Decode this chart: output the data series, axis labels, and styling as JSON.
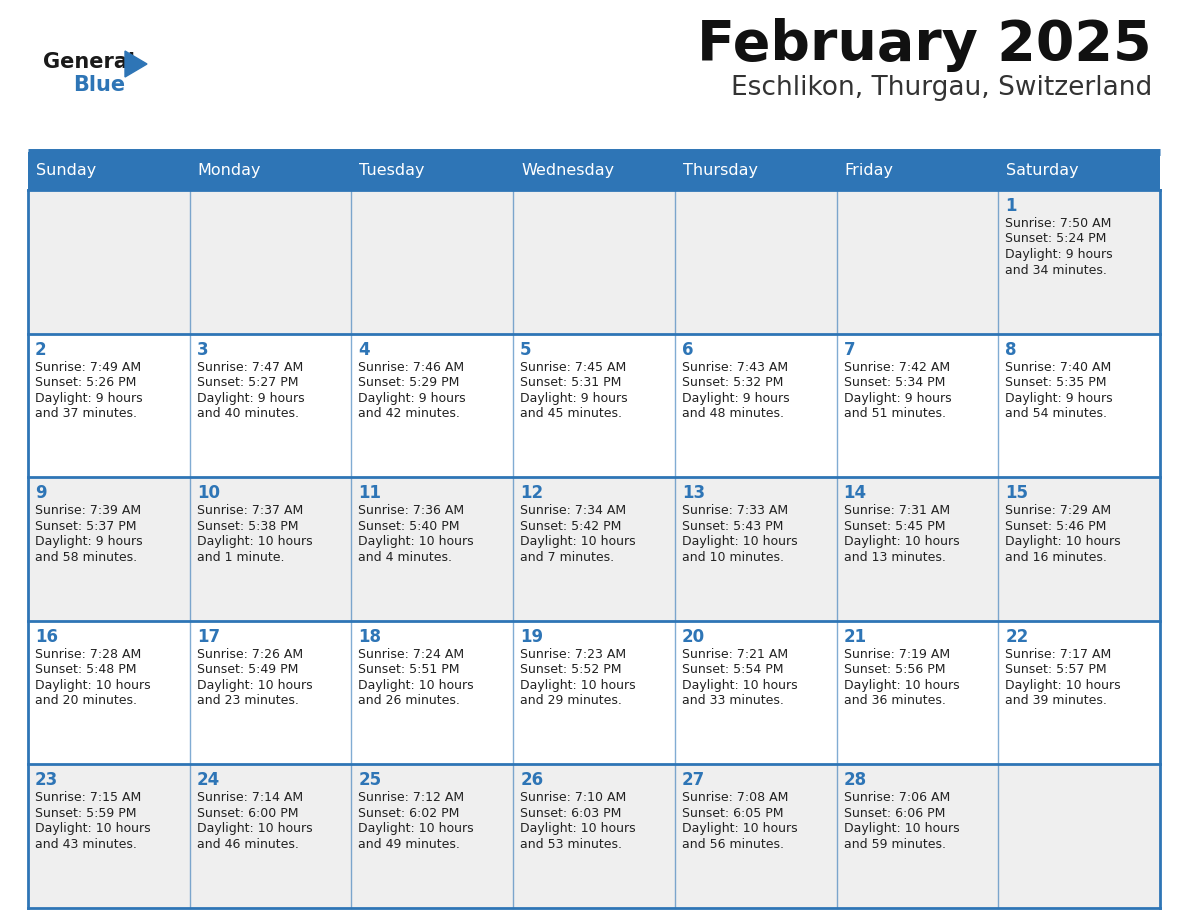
{
  "title": "February 2025",
  "subtitle": "Eschlikon, Thurgau, Switzerland",
  "header_bg": "#2E75B6",
  "header_text": "#FFFFFF",
  "cell_bg_odd": "#EFEFEF",
  "cell_bg_even": "#FFFFFF",
  "day_number_color": "#2E75B6",
  "cell_text_color": "#222222",
  "border_color": "#2E75B6",
  "days_of_week": [
    "Sunday",
    "Monday",
    "Tuesday",
    "Wednesday",
    "Thursday",
    "Friday",
    "Saturday"
  ],
  "logo_general_color": "#1a1a1a",
  "logo_blue_color": "#2E75B6",
  "calendar": [
    [
      null,
      null,
      null,
      null,
      null,
      null,
      {
        "day": 1,
        "sunrise": "7:50 AM",
        "sunset": "5:24 PM",
        "daylight": "9 hours\nand 34 minutes."
      }
    ],
    [
      {
        "day": 2,
        "sunrise": "7:49 AM",
        "sunset": "5:26 PM",
        "daylight": "9 hours\nand 37 minutes."
      },
      {
        "day": 3,
        "sunrise": "7:47 AM",
        "sunset": "5:27 PM",
        "daylight": "9 hours\nand 40 minutes."
      },
      {
        "day": 4,
        "sunrise": "7:46 AM",
        "sunset": "5:29 PM",
        "daylight": "9 hours\nand 42 minutes."
      },
      {
        "day": 5,
        "sunrise": "7:45 AM",
        "sunset": "5:31 PM",
        "daylight": "9 hours\nand 45 minutes."
      },
      {
        "day": 6,
        "sunrise": "7:43 AM",
        "sunset": "5:32 PM",
        "daylight": "9 hours\nand 48 minutes."
      },
      {
        "day": 7,
        "sunrise": "7:42 AM",
        "sunset": "5:34 PM",
        "daylight": "9 hours\nand 51 minutes."
      },
      {
        "day": 8,
        "sunrise": "7:40 AM",
        "sunset": "5:35 PM",
        "daylight": "9 hours\nand 54 minutes."
      }
    ],
    [
      {
        "day": 9,
        "sunrise": "7:39 AM",
        "sunset": "5:37 PM",
        "daylight": "9 hours\nand 58 minutes."
      },
      {
        "day": 10,
        "sunrise": "7:37 AM",
        "sunset": "5:38 PM",
        "daylight": "10 hours\nand 1 minute."
      },
      {
        "day": 11,
        "sunrise": "7:36 AM",
        "sunset": "5:40 PM",
        "daylight": "10 hours\nand 4 minutes."
      },
      {
        "day": 12,
        "sunrise": "7:34 AM",
        "sunset": "5:42 PM",
        "daylight": "10 hours\nand 7 minutes."
      },
      {
        "day": 13,
        "sunrise": "7:33 AM",
        "sunset": "5:43 PM",
        "daylight": "10 hours\nand 10 minutes."
      },
      {
        "day": 14,
        "sunrise": "7:31 AM",
        "sunset": "5:45 PM",
        "daylight": "10 hours\nand 13 minutes."
      },
      {
        "day": 15,
        "sunrise": "7:29 AM",
        "sunset": "5:46 PM",
        "daylight": "10 hours\nand 16 minutes."
      }
    ],
    [
      {
        "day": 16,
        "sunrise": "7:28 AM",
        "sunset": "5:48 PM",
        "daylight": "10 hours\nand 20 minutes."
      },
      {
        "day": 17,
        "sunrise": "7:26 AM",
        "sunset": "5:49 PM",
        "daylight": "10 hours\nand 23 minutes."
      },
      {
        "day": 18,
        "sunrise": "7:24 AM",
        "sunset": "5:51 PM",
        "daylight": "10 hours\nand 26 minutes."
      },
      {
        "day": 19,
        "sunrise": "7:23 AM",
        "sunset": "5:52 PM",
        "daylight": "10 hours\nand 29 minutes."
      },
      {
        "day": 20,
        "sunrise": "7:21 AM",
        "sunset": "5:54 PM",
        "daylight": "10 hours\nand 33 minutes."
      },
      {
        "day": 21,
        "sunrise": "7:19 AM",
        "sunset": "5:56 PM",
        "daylight": "10 hours\nand 36 minutes."
      },
      {
        "day": 22,
        "sunrise": "7:17 AM",
        "sunset": "5:57 PM",
        "daylight": "10 hours\nand 39 minutes."
      }
    ],
    [
      {
        "day": 23,
        "sunrise": "7:15 AM",
        "sunset": "5:59 PM",
        "daylight": "10 hours\nand 43 minutes."
      },
      {
        "day": 24,
        "sunrise": "7:14 AM",
        "sunset": "6:00 PM",
        "daylight": "10 hours\nand 46 minutes."
      },
      {
        "day": 25,
        "sunrise": "7:12 AM",
        "sunset": "6:02 PM",
        "daylight": "10 hours\nand 49 minutes."
      },
      {
        "day": 26,
        "sunrise": "7:10 AM",
        "sunset": "6:03 PM",
        "daylight": "10 hours\nand 53 minutes."
      },
      {
        "day": 27,
        "sunrise": "7:08 AM",
        "sunset": "6:05 PM",
        "daylight": "10 hours\nand 56 minutes."
      },
      {
        "day": 28,
        "sunrise": "7:06 AM",
        "sunset": "6:06 PM",
        "daylight": "10 hours\nand 59 minutes."
      },
      null
    ]
  ]
}
